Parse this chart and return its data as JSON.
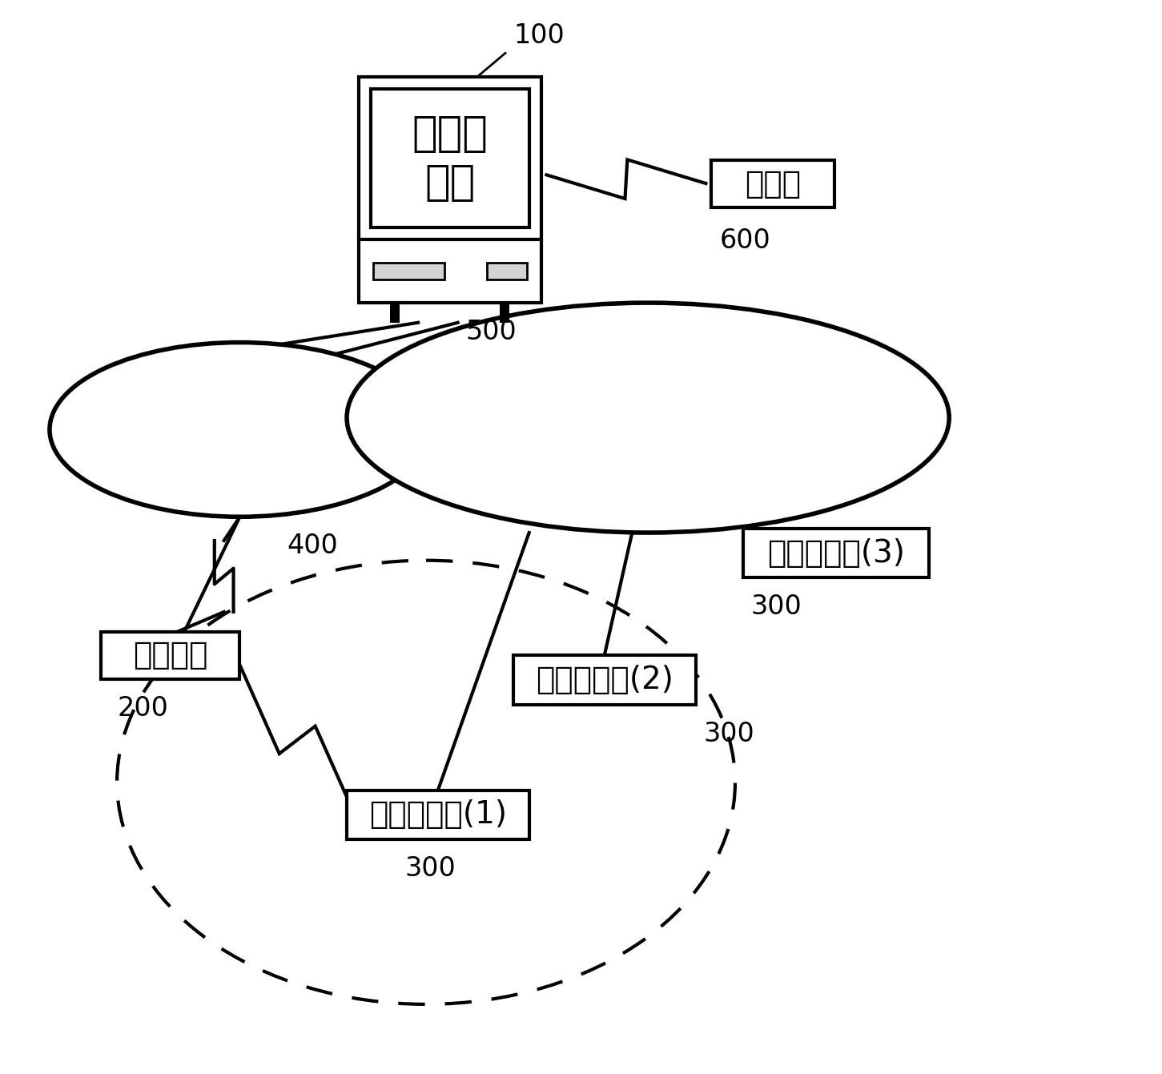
{
  "bg_color": "#ffffff",
  "figsize": [
    14.51,
    13.41
  ],
  "dpi": 100,
  "labels": {
    "server": "服务器\n装置",
    "telecom": "通信局",
    "mobile": "移动电话",
    "hotspot1": "热点计算机(1)",
    "hotspot2": "热点计算机(2)",
    "hotspot3": "热点计算机(3)"
  },
  "server_label": "100",
  "telecom_label": "600",
  "left_ellipse_label": "400",
  "right_ellipse_label": "500",
  "mobile_label": "200",
  "hotspot1_label": "300",
  "hotspot2_label": "300",
  "hotspot3_label": "300"
}
